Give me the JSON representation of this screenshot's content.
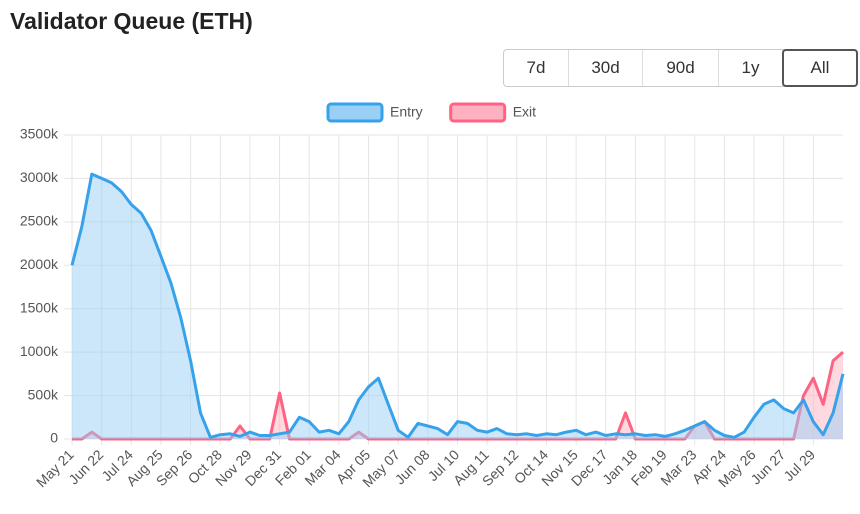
{
  "header": {
    "title": "Validator Queue (ETH)"
  },
  "range_buttons": [
    "7d",
    "30d",
    "90d",
    "1y",
    "All"
  ],
  "selected_range_index": 4,
  "chart_data": {
    "type": "line",
    "categories": [
      "May 21",
      null,
      null,
      "Jun 22",
      null,
      null,
      "Jul 24",
      null,
      null,
      "Aug 25",
      null,
      null,
      "Sep 26",
      null,
      null,
      "Oct 28",
      null,
      null,
      "Nov 29",
      null,
      null,
      "Dec 31",
      null,
      null,
      "Feb 01",
      null,
      null,
      "Mar 04",
      null,
      null,
      "Apr 05",
      null,
      null,
      "May 07",
      null,
      null,
      "Jun 08",
      null,
      null,
      "Jul 10",
      null,
      null,
      "Aug 11",
      null,
      null,
      "Sep 12",
      null,
      null,
      "Oct 14",
      null,
      null,
      "Nov 15",
      null,
      null,
      "Dec 17",
      null,
      null,
      "Jan 18",
      null,
      null,
      "Feb 19",
      null,
      null,
      "Mar 23",
      null,
      null,
      "Apr 24",
      null,
      null,
      "May 26",
      null,
      null,
      "Jun 27",
      null,
      null,
      "Jul 29",
      null,
      null,
      null
    ],
    "series": [
      {
        "name": "Entry",
        "color": "#36a2eb",
        "fill": "#9ad0f5",
        "values": [
          2000000,
          2450000,
          3050000,
          3000000,
          2950000,
          2850000,
          2700000,
          2600000,
          2400000,
          2100000,
          1800000,
          1400000,
          900000,
          300000,
          20000,
          50000,
          60000,
          30000,
          80000,
          40000,
          40000,
          60000,
          80000,
          250000,
          200000,
          80000,
          100000,
          60000,
          200000,
          450000,
          600000,
          700000,
          400000,
          100000,
          20000,
          180000,
          150000,
          120000,
          50000,
          200000,
          180000,
          100000,
          80000,
          120000,
          60000,
          50000,
          60000,
          40000,
          60000,
          50000,
          80000,
          100000,
          50000,
          80000,
          40000,
          60000,
          50000,
          60000,
          40000,
          50000,
          30000,
          60000,
          100000,
          150000,
          200000,
          100000,
          40000,
          20000,
          80000,
          250000,
          400000,
          450000,
          350000,
          300000,
          450000,
          200000,
          50000,
          300000,
          750000
        ]
      },
      {
        "name": "Exit",
        "color": "#ff6384",
        "fill": "#ffb1c1",
        "values": [
          0,
          0,
          80000,
          0,
          0,
          0,
          0,
          0,
          0,
          0,
          0,
          0,
          0,
          0,
          0,
          0,
          0,
          150000,
          0,
          0,
          0,
          530000,
          0,
          0,
          0,
          0,
          0,
          0,
          0,
          80000,
          0,
          0,
          0,
          0,
          0,
          0,
          0,
          0,
          0,
          0,
          0,
          0,
          0,
          0,
          0,
          0,
          0,
          0,
          0,
          0,
          0,
          0,
          0,
          0,
          0,
          0,
          300000,
          0,
          0,
          0,
          0,
          0,
          0,
          150000,
          200000,
          0,
          0,
          0,
          0,
          0,
          0,
          0,
          0,
          0,
          500000,
          700000,
          400000,
          900000,
          1000000
        ]
      }
    ],
    "ylim": [
      0,
      3500000
    ],
    "yticks": [
      0,
      {
        "value": 500000,
        "label": "500k"
      },
      {
        "value": 1000000,
        "label": "1000k"
      },
      {
        "value": 1500000,
        "label": "1500k"
      },
      {
        "value": 2000000,
        "label": "2000k"
      },
      {
        "value": 2500000,
        "label": "2500k"
      },
      {
        "value": 3000000,
        "label": "3000k"
      },
      {
        "value": 3500000,
        "label": "3500k"
      }
    ],
    "grid": true,
    "legend": "top"
  }
}
